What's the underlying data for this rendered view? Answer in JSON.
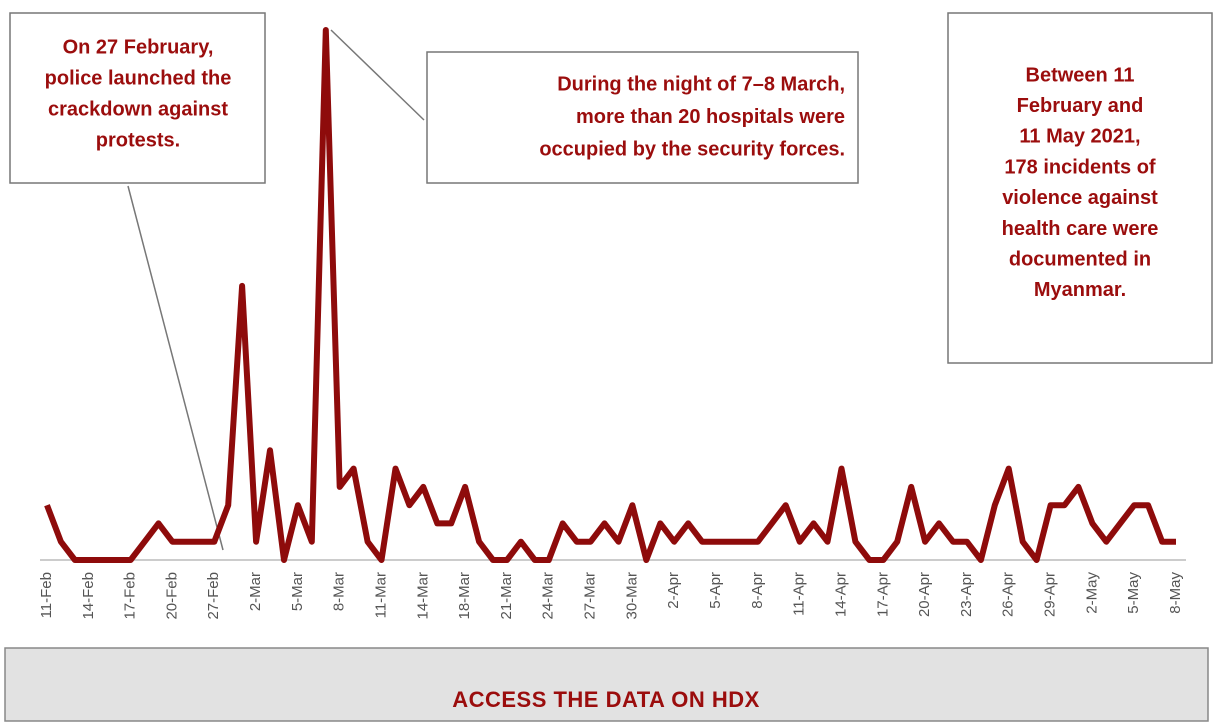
{
  "chart_data": {
    "type": "line",
    "categories": [
      "11-Feb",
      null,
      null,
      "14-Feb",
      null,
      null,
      "17-Feb",
      null,
      null,
      "20-Feb",
      null,
      null,
      "27-Feb",
      null,
      null,
      "2-Mar",
      null,
      null,
      "5-Mar",
      null,
      null,
      "8-Mar",
      null,
      null,
      "11-Mar",
      null,
      null,
      "14-Mar",
      null,
      null,
      "18-Mar",
      null,
      null,
      "21-Mar",
      null,
      null,
      "24-Mar",
      null,
      null,
      "27-Mar",
      null,
      null,
      "30-Mar",
      null,
      null,
      "2-Apr",
      null,
      null,
      "5-Apr",
      null,
      null,
      "8-Apr",
      null,
      null,
      "11-Apr",
      null,
      null,
      "14-Apr",
      null,
      null,
      "17-Apr",
      null,
      null,
      "20-Apr",
      null,
      null,
      "23-Apr",
      null,
      null,
      "26-Apr",
      null,
      null,
      "29-Apr",
      null,
      null,
      "2-May",
      null,
      null,
      "5-May",
      null,
      null,
      "8-May"
    ],
    "values": [
      3,
      1,
      0,
      0,
      0,
      0,
      0,
      1,
      2,
      1,
      1,
      1,
      1,
      3,
      15,
      1,
      6,
      0,
      3,
      1,
      29,
      4,
      5,
      1,
      0,
      5,
      3,
      4,
      2,
      2,
      4,
      1,
      0,
      0,
      1,
      0,
      0,
      2,
      1,
      1,
      2,
      1,
      3,
      0,
      2,
      1,
      2,
      1,
      1,
      1,
      1,
      1,
      2,
      3,
      1,
      2,
      1,
      5,
      1,
      0,
      0,
      1,
      4,
      1,
      2,
      1,
      1,
      0,
      3,
      5,
      1,
      0,
      3,
      3,
      4,
      2,
      1,
      2,
      3,
      3,
      1,
      1
    ],
    "color": "#8e0b0b",
    "ylim": [
      0,
      29
    ],
    "annotations": [
      {
        "lines": [
          "On 27 February,",
          "police launched the",
          "crackdown against",
          "protests."
        ]
      },
      {
        "lines": [
          "During the night of 7–8 March,",
          "more than 20 hospitals were",
          "occupied by the security forces."
        ]
      },
      {
        "lines": [
          "Between 11",
          "February and",
          "11 May 2021,",
          "178 incidents of",
          "violence against",
          "health care were",
          "documented in",
          "Myanmar."
        ]
      }
    ]
  },
  "button": "ACCESS THE DATA ON HDX"
}
